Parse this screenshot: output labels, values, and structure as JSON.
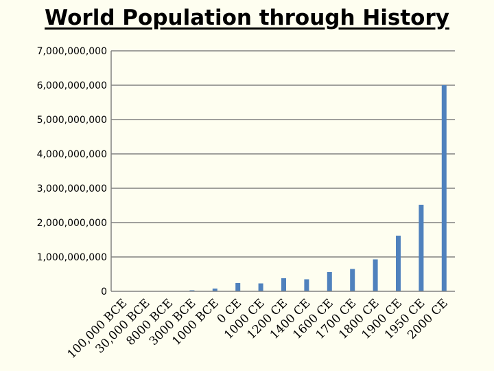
{
  "chart_data": {
    "type": "bar",
    "title": "World Population through History",
    "xlabel": "",
    "ylabel": "",
    "categories": [
      "100,000 BCE",
      "30,000 BCE",
      "8000 BCE",
      "3000 BCE",
      "1000 BCE",
      "0 CE",
      "1000 CE",
      "1200 CE",
      "1400 CE",
      "1600 CE",
      "1700 CE",
      "1800 CE",
      "1900 CE",
      "1950 CE",
      "2000 CE"
    ],
    "values": [
      0,
      0,
      5000000,
      30000000,
      80000000,
      240000000,
      230000000,
      380000000,
      350000000,
      560000000,
      650000000,
      930000000,
      1620000000,
      2520000000,
      6000000000
    ],
    "ylim": [
      0,
      7000000000
    ],
    "yticks": [
      0,
      1000000000,
      2000000000,
      3000000000,
      4000000000,
      5000000000,
      6000000000,
      7000000000
    ],
    "ytick_labels": [
      "0",
      "1,000,000,000",
      "2,000,000,000",
      "3,000,000,000",
      "4,000,000,000",
      "5,000,000,000",
      "6,000,000,000",
      "7,000,000,000"
    ],
    "grid": true,
    "bar_color": "#4f81bd",
    "grid_color": "#808080",
    "legend": "none"
  }
}
